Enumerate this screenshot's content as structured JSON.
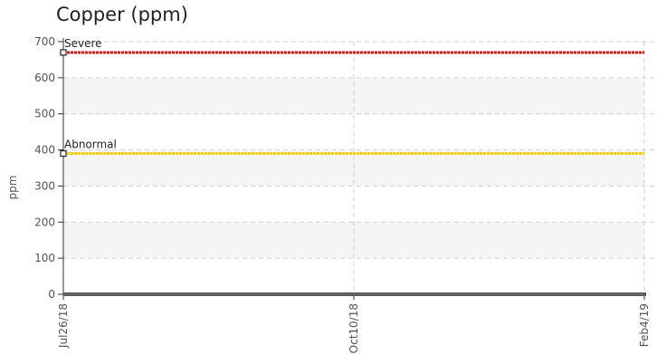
{
  "chart_data": {
    "type": "line",
    "title": "Copper (ppm)",
    "ylabel": "ppm",
    "xlabel": "",
    "ylim": [
      0,
      700
    ],
    "yticks": [
      "0",
      "100",
      "200",
      "300",
      "400",
      "500",
      "600",
      "700"
    ],
    "x_categories": [
      "Jul26/18",
      "Oct10/18",
      "Feb4/19"
    ],
    "grid": true,
    "series": [
      {
        "name": "Severe",
        "values": [
          670,
          670,
          670
        ],
        "color": "#ee1111",
        "style": "dotted"
      },
      {
        "name": "Abnormal",
        "values": [
          390,
          390,
          390
        ],
        "color": "#ffcc00",
        "style": "dotted"
      },
      {
        "name": "",
        "values": [
          0,
          0,
          0
        ],
        "color": "#666666",
        "style": "solid"
      }
    ]
  }
}
